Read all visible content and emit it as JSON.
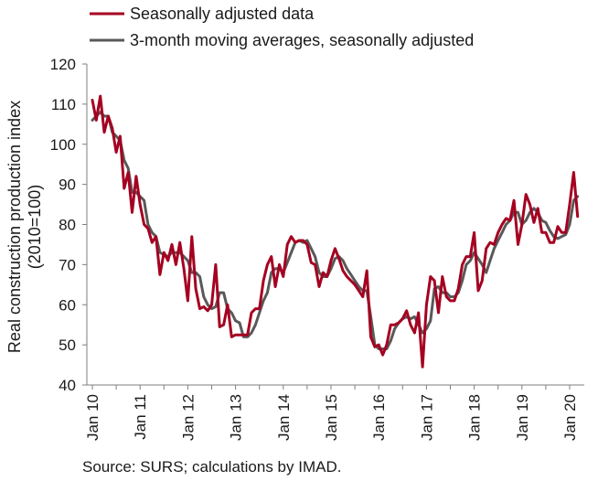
{
  "chart_data": {
    "type": "line",
    "title": "",
    "ylabel_line1": "Real construction production index",
    "ylabel_line2": "(2010=100)",
    "ylim": [
      40,
      120
    ],
    "yticks": [
      40,
      50,
      60,
      70,
      80,
      90,
      100,
      110,
      120
    ],
    "xtick_labels": [
      "Jan 10",
      "Jan 11",
      "Jan 12",
      "Jan 13",
      "Jan 14",
      "Jan 15",
      "Jan 16",
      "Jan 17",
      "Jan 18",
      "Jan 19",
      "Jan 20"
    ],
    "x_start": "Jan 10",
    "grid": false,
    "legend_position": "top-left",
    "source": "Source: SURS; calculations by IMAD.",
    "series": [
      {
        "name": "Seasonally adjusted data",
        "color": "#a50021",
        "values": [
          111,
          106,
          112,
          103,
          107,
          104,
          98,
          102,
          89,
          93,
          83,
          92,
          85,
          80,
          79,
          75.5,
          77,
          67.5,
          73,
          71,
          75,
          70,
          75.5,
          69,
          61,
          77,
          64,
          59,
          59.5,
          58.5,
          60,
          70,
          54.5,
          55,
          60,
          52,
          52.5,
          52.5,
          52.5,
          52.5,
          58,
          59,
          59,
          66,
          70,
          72,
          64.5,
          70,
          67,
          75,
          77,
          75.5,
          76,
          76,
          75,
          70.5,
          70,
          64.5,
          68,
          67,
          71,
          74,
          71.5,
          68.5,
          67,
          66,
          65,
          63.5,
          62,
          68.5,
          52,
          49.5,
          50,
          47.5,
          50,
          55,
          55,
          55.5,
          56.5,
          58.5,
          55,
          53,
          58,
          44.5,
          60,
          67,
          66,
          58,
          67,
          62,
          61,
          61,
          64,
          70,
          72,
          72,
          78,
          63.5,
          66,
          74,
          75.5,
          75,
          78,
          80,
          81.5,
          81,
          86,
          75,
          80,
          87.5,
          85,
          80.5,
          84,
          78,
          78,
          75.5,
          75.5,
          79.5,
          78,
          78,
          85,
          93,
          82
        ]
      },
      {
        "name": "3-month moving averages, seasonally adjusted",
        "color": "#595959",
        "values": [
          106,
          107,
          108,
          107,
          107,
          103,
          102,
          101,
          96,
          94,
          88,
          88,
          87,
          86,
          80,
          78,
          77,
          73,
          72.5,
          72,
          73,
          73,
          73,
          72,
          71,
          68,
          68,
          67,
          62,
          60,
          59,
          59.5,
          63,
          63,
          59,
          58,
          56,
          55.5,
          52,
          52,
          53,
          55,
          58,
          61,
          63,
          68,
          69,
          69,
          68,
          70.5,
          73,
          75.5,
          76,
          75.5,
          76,
          74,
          72,
          68,
          67,
          67,
          69,
          71.5,
          72,
          71,
          69,
          67.5,
          66,
          64.5,
          63.5,
          63.5,
          57,
          50,
          49,
          49,
          49,
          51,
          54,
          55.5,
          56.5,
          57,
          56.5,
          57,
          55,
          53,
          54,
          56,
          64,
          64.5,
          63,
          63,
          62,
          62,
          63,
          66,
          70,
          71,
          73,
          71.5,
          70,
          68,
          71,
          74,
          76,
          78,
          80,
          81,
          83,
          83,
          80,
          81,
          83,
          84,
          83,
          81,
          80.5,
          78.5,
          77,
          76.5,
          77,
          77.5,
          80,
          86,
          87
        ]
      }
    ]
  }
}
